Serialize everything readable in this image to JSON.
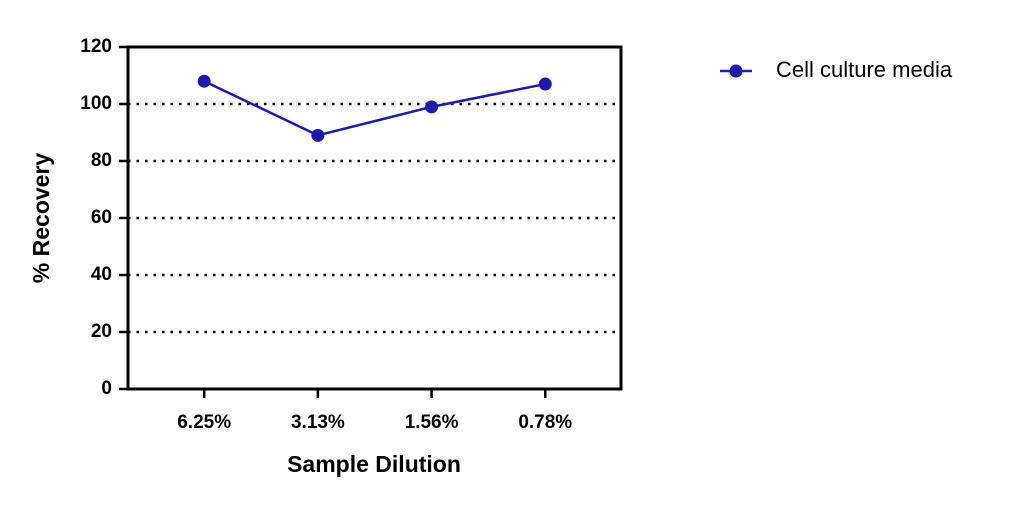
{
  "chart_data": {
    "type": "line",
    "x_label": "Sample Dilution",
    "y_label": "% Recovery",
    "categories": [
      "6.25%",
      "3.13%",
      "1.56%",
      "0.78%"
    ],
    "series": [
      {
        "name": "Cell culture media",
        "color": "#1c1ca8",
        "values": [
          108,
          89,
          99,
          107
        ]
      }
    ],
    "ylim": [
      0,
      120
    ],
    "yticks": [
      0,
      20,
      40,
      60,
      80,
      100,
      120
    ],
    "grid": true,
    "legend": "right"
  }
}
